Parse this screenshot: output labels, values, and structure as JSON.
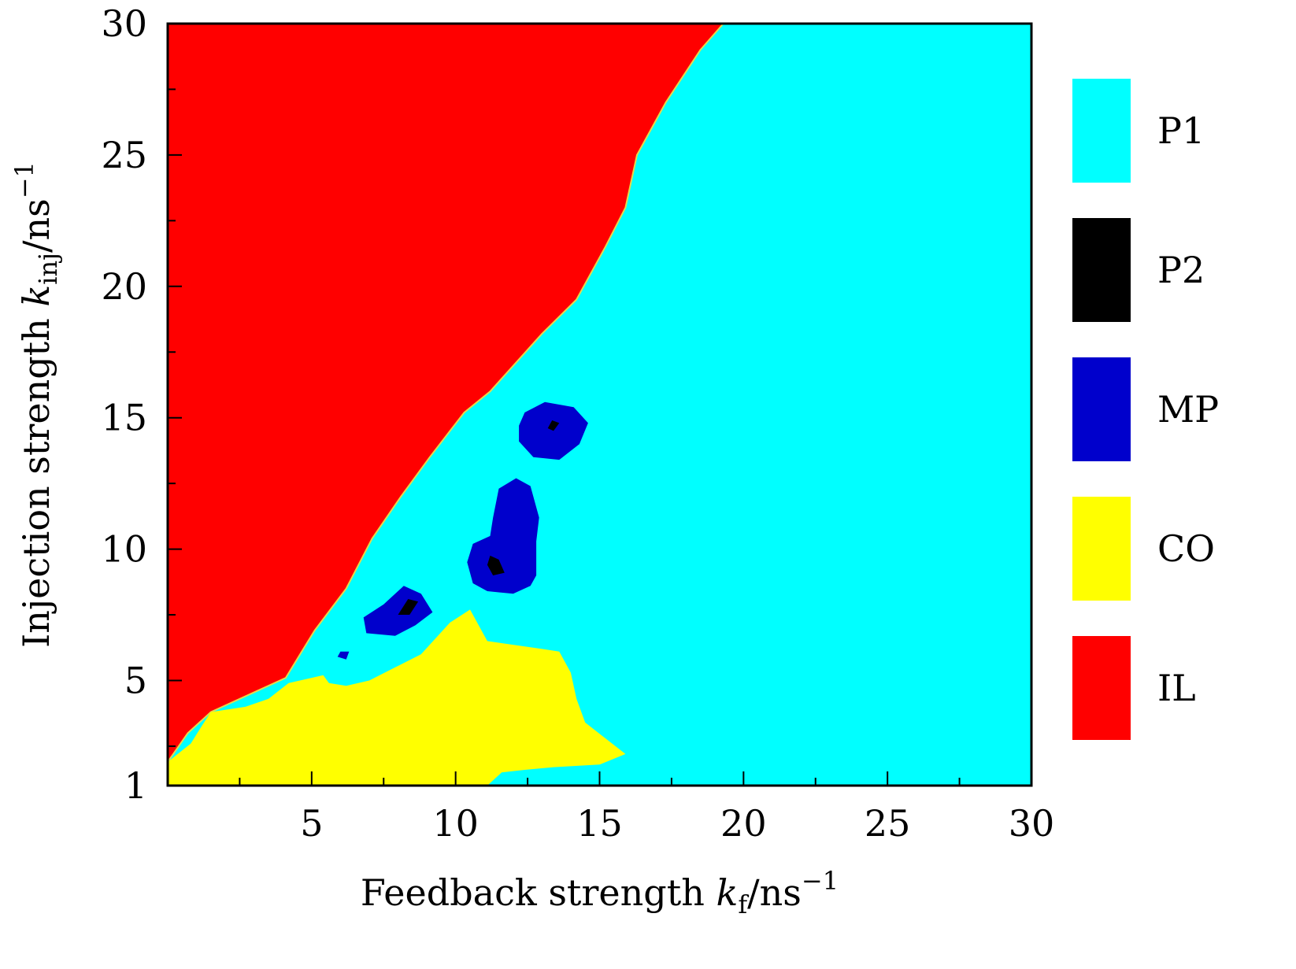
{
  "chart_data": {
    "type": "heatmap",
    "subtype": "regime-map",
    "x_axis": {
      "label_text": "Feedback strength ",
      "symbol": "k",
      "subscript": "f",
      "unit": "/ns",
      "exponent": "−1",
      "range": [
        0,
        30
      ],
      "ticks": [
        5,
        10,
        15,
        20,
        25,
        30
      ],
      "tick_labels": [
        "5",
        "10",
        "15",
        "20",
        "25",
        "30"
      ],
      "minor_ticks": [
        2.5,
        7.5,
        12.5,
        17.5,
        22.5,
        27.5
      ]
    },
    "y_axis": {
      "label_text": "Injection strength ",
      "symbol": "k",
      "subscript": "inj",
      "unit": "/ns",
      "exponent": "−1",
      "range": [
        1,
        30
      ],
      "ticks": [
        1,
        5,
        10,
        15,
        20,
        25,
        30
      ],
      "tick_labels": [
        "1",
        "5",
        "10",
        "15",
        "20",
        "25",
        "30"
      ],
      "minor_ticks": [
        2.5,
        7.5,
        12.5,
        17.5,
        22.5,
        27.5
      ]
    },
    "background_regime": "P1",
    "regimes": [
      {
        "name": "P1",
        "color": "#00ffff"
      },
      {
        "name": "P2",
        "color": "#000000"
      },
      {
        "name": "MP",
        "color": "#0000cc"
      },
      {
        "name": "CO",
        "color": "#ffff00"
      },
      {
        "name": "IL",
        "color": "#ff0000"
      }
    ],
    "regions": [
      {
        "regime": "IL",
        "boundary": [
          [
            0,
            1
          ],
          [
            0,
            30
          ],
          [
            19.3,
            30
          ],
          [
            18.5,
            29
          ],
          [
            17.3,
            27
          ],
          [
            16.3,
            25
          ],
          [
            15.9,
            23
          ],
          [
            15.2,
            21.5
          ],
          [
            14.2,
            19.5
          ],
          [
            13,
            18.2
          ],
          [
            11.2,
            16
          ],
          [
            10.3,
            15.2
          ],
          [
            9.1,
            13.5
          ],
          [
            8.1,
            12
          ],
          [
            7.1,
            10.4
          ],
          [
            6.2,
            8.5
          ],
          [
            5.1,
            6.9
          ],
          [
            4.1,
            5.1
          ],
          [
            3.1,
            4.6
          ],
          [
            1.5,
            3.8
          ],
          [
            0.7,
            3
          ],
          [
            0,
            1.9
          ]
        ]
      },
      {
        "regime": "CO",
        "boundary": [
          [
            0,
            1
          ],
          [
            0,
            1.9
          ],
          [
            0.8,
            2.6
          ],
          [
            1.2,
            3.3
          ],
          [
            1.5,
            3.8
          ],
          [
            2.7,
            4
          ],
          [
            3.5,
            4.3
          ],
          [
            4.2,
            4.9
          ],
          [
            5,
            5.1
          ],
          [
            5.4,
            5.2
          ],
          [
            5.6,
            4.9
          ],
          [
            6.2,
            4.8
          ],
          [
            7,
            5
          ],
          [
            7.9,
            5.5
          ],
          [
            8.8,
            6
          ],
          [
            9.8,
            7.2
          ],
          [
            10.5,
            7.7
          ],
          [
            11.1,
            6.5
          ],
          [
            13,
            6.2
          ],
          [
            13.6,
            6.1
          ],
          [
            14,
            5.3
          ],
          [
            14.2,
            4.3
          ],
          [
            14.5,
            3.4
          ],
          [
            15.2,
            2.8
          ],
          [
            15.9,
            2.2
          ],
          [
            15,
            1.8
          ],
          [
            13.4,
            1.7
          ],
          [
            12.4,
            1.6
          ],
          [
            11.6,
            1.5
          ],
          [
            11.1,
            1
          ]
        ]
      },
      {
        "regime": "MP",
        "boundary": [
          [
            6.8,
            7.4
          ],
          [
            7.5,
            7.9
          ],
          [
            8.2,
            8.6
          ],
          [
            8.8,
            8.3
          ],
          [
            9.2,
            7.6
          ],
          [
            8.6,
            7.1
          ],
          [
            7.9,
            6.7
          ],
          [
            6.9,
            6.8
          ]
        ]
      },
      {
        "regime": "MP",
        "boundary": [
          [
            10.4,
            9.5
          ],
          [
            10.6,
            10.2
          ],
          [
            11.2,
            10.5
          ],
          [
            11.3,
            11.2
          ],
          [
            11.5,
            12.3
          ],
          [
            12.1,
            12.7
          ],
          [
            12.6,
            12.4
          ],
          [
            12.9,
            11.2
          ],
          [
            12.8,
            10.3
          ],
          [
            12.8,
            9
          ],
          [
            12.6,
            8.6
          ],
          [
            12,
            8.3
          ],
          [
            11.1,
            8.4
          ],
          [
            10.6,
            8.7
          ]
        ]
      },
      {
        "regime": "MP",
        "boundary": [
          [
            12.2,
            14.7
          ],
          [
            12.4,
            15.2
          ],
          [
            13.1,
            15.6
          ],
          [
            14.1,
            15.4
          ],
          [
            14.6,
            14.8
          ],
          [
            14.3,
            14
          ],
          [
            13.6,
            13.4
          ],
          [
            12.7,
            13.5
          ],
          [
            12.2,
            14.1
          ]
        ]
      },
      {
        "regime": "MP",
        "boundary": [
          [
            5.9,
            5.9
          ],
          [
            6,
            6.1
          ],
          [
            6.3,
            6.1
          ],
          [
            6.2,
            5.8
          ]
        ]
      },
      {
        "regime": "P2",
        "boundary": [
          [
            11.1,
            9.4
          ],
          [
            11.2,
            9.75
          ],
          [
            11.5,
            9.6
          ],
          [
            11.7,
            9.1
          ],
          [
            11.3,
            9.0
          ]
        ]
      },
      {
        "regime": "P2",
        "boundary": [
          [
            8.0,
            7.5
          ],
          [
            8.35,
            8.1
          ],
          [
            8.7,
            8.0
          ],
          [
            8.4,
            7.5
          ]
        ]
      },
      {
        "regime": "P2",
        "boundary": [
          [
            13.2,
            14.6
          ],
          [
            13.35,
            14.9
          ],
          [
            13.6,
            14.8
          ],
          [
            13.4,
            14.5
          ]
        ]
      }
    ]
  }
}
